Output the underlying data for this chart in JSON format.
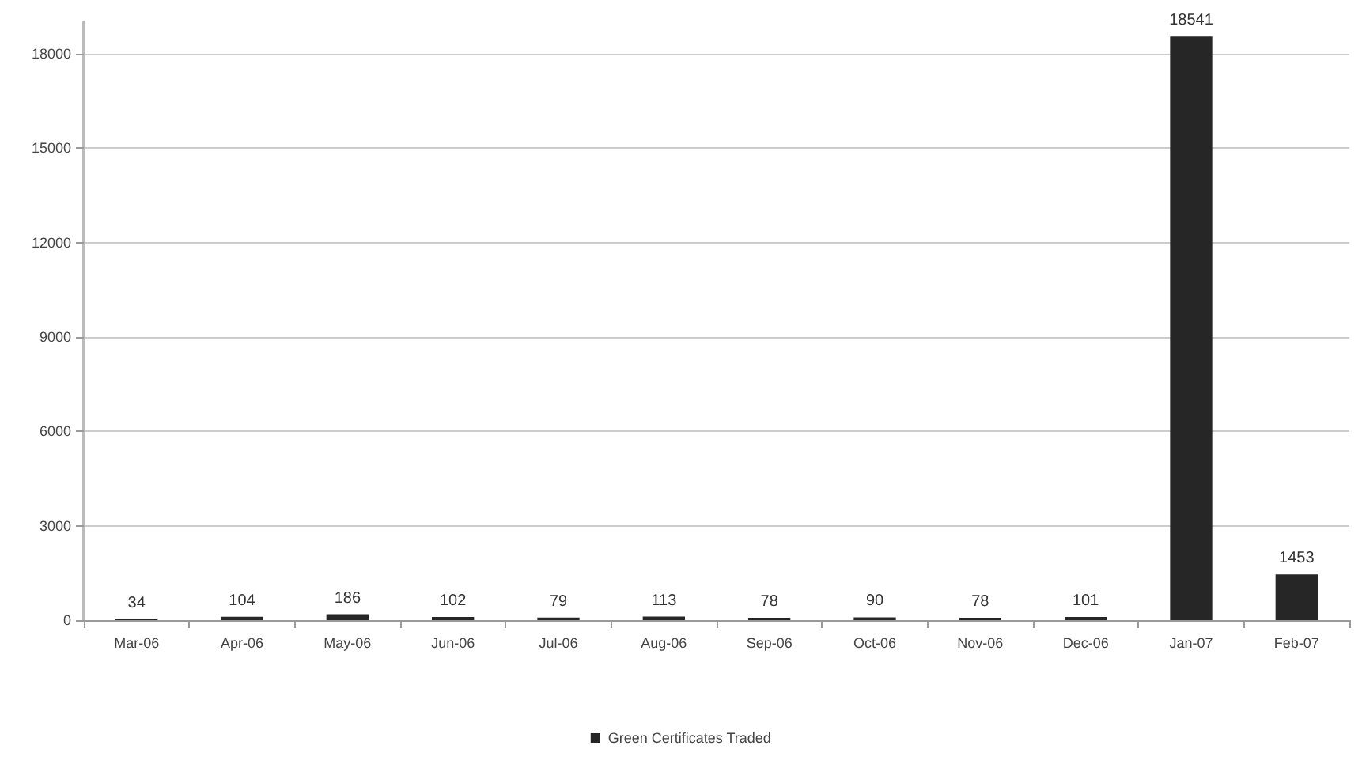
{
  "chart_data": {
    "type": "bar",
    "categories": [
      "Mar-06",
      "Apr-06",
      "May-06",
      "Jun-06",
      "Jul-06",
      "Aug-06",
      "Sep-06",
      "Oct-06",
      "Nov-06",
      "Dec-06",
      "Jan-07",
      "Feb-07"
    ],
    "series": [
      {
        "name": "Green Certificates Traded",
        "color": "#262626",
        "values": [
          34,
          104,
          186,
          102,
          79,
          113,
          78,
          90,
          78,
          101,
          18541,
          1453
        ]
      }
    ],
    "ylim": [
      0,
      19000
    ],
    "yticks": [
      0,
      3000,
      6000,
      9000,
      12000,
      15000,
      18000
    ],
    "grid": "y",
    "legend": "bottom",
    "data_labels": true
  }
}
